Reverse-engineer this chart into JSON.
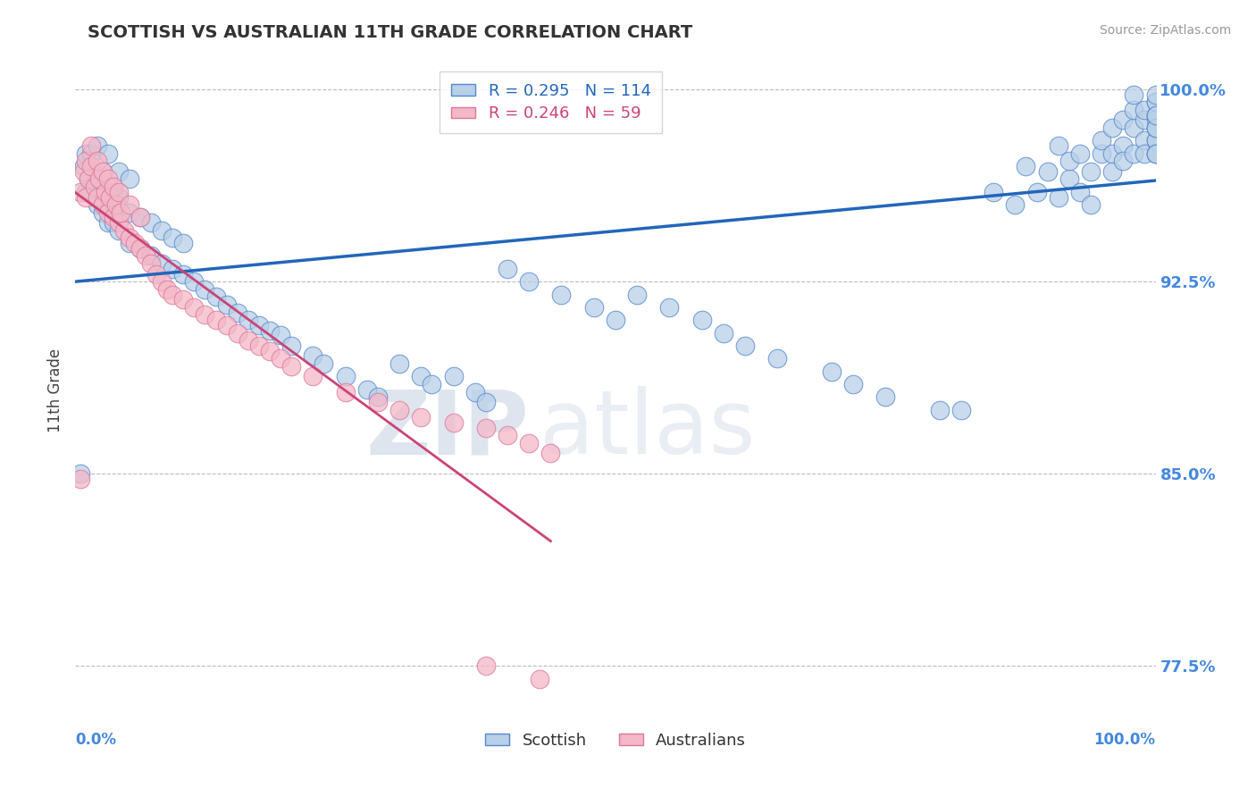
{
  "title": "SCOTTISH VS AUSTRALIAN 11TH GRADE CORRELATION CHART",
  "source": "Source: ZipAtlas.com",
  "ylabel": "11th Grade",
  "legend_label1": "Scottish",
  "legend_label2": "Australians",
  "R_blue": 0.295,
  "N_blue": 114,
  "R_pink": 0.246,
  "N_pink": 59,
  "blue_color": "#b8d0e8",
  "blue_edge_color": "#5588cc",
  "blue_line_color": "#2266bb",
  "pink_color": "#f4b8c8",
  "pink_edge_color": "#dd7799",
  "pink_line_color": "#cc4477",
  "axis_label_color": "#4488dd",
  "title_color": "#333333",
  "grid_color": "#bbbbbb",
  "background_color": "#ffffff",
  "watermark_zip": "ZIP",
  "watermark_atlas": "atlas",
  "xmin": 0.0,
  "xmax": 1.0,
  "ymin": 0.755,
  "ymax": 1.01,
  "yticks": [
    0.775,
    0.85,
    0.925,
    1.0
  ],
  "ytick_labels": [
    "77.5%",
    "85.0%",
    "92.5%",
    "100.0%"
  ],
  "blue_x": [
    0.005,
    0.008,
    0.01,
    0.01,
    0.012,
    0.015,
    0.015,
    0.02,
    0.02,
    0.02,
    0.025,
    0.025,
    0.03,
    0.03,
    0.03,
    0.035,
    0.035,
    0.04,
    0.04,
    0.04,
    0.05,
    0.05,
    0.05,
    0.06,
    0.06,
    0.07,
    0.07,
    0.08,
    0.08,
    0.09,
    0.09,
    0.1,
    0.1,
    0.11,
    0.12,
    0.13,
    0.14,
    0.15,
    0.16,
    0.17,
    0.18,
    0.19,
    0.2,
    0.22,
    0.23,
    0.25,
    0.27,
    0.28,
    0.3,
    0.32,
    0.33,
    0.35,
    0.37,
    0.38,
    0.4,
    0.42,
    0.45,
    0.48,
    0.5,
    0.52,
    0.55,
    0.58,
    0.6,
    0.62,
    0.65,
    0.7,
    0.72,
    0.75,
    0.8,
    0.82,
    0.85,
    0.87,
    0.88,
    0.89,
    0.9,
    0.91,
    0.91,
    0.92,
    0.92,
    0.93,
    0.93,
    0.94,
    0.94,
    0.95,
    0.95,
    0.96,
    0.96,
    0.96,
    0.97,
    0.97,
    0.97,
    0.98,
    0.98,
    0.98,
    0.98,
    0.99,
    0.99,
    0.99,
    0.99,
    1.0,
    1.0,
    1.0,
    1.0,
    1.0,
    1.0,
    1.0,
    1.0,
    1.0,
    1.0,
    1.0,
    1.0,
    1.0,
    1.0,
    1.0
  ],
  "blue_y": [
    0.85,
    0.97,
    0.96,
    0.975,
    0.965,
    0.96,
    0.975,
    0.955,
    0.965,
    0.978,
    0.952,
    0.968,
    0.948,
    0.962,
    0.975,
    0.948,
    0.96,
    0.945,
    0.958,
    0.968,
    0.94,
    0.952,
    0.965,
    0.938,
    0.95,
    0.935,
    0.948,
    0.932,
    0.945,
    0.93,
    0.942,
    0.928,
    0.94,
    0.925,
    0.922,
    0.919,
    0.916,
    0.913,
    0.91,
    0.908,
    0.906,
    0.904,
    0.9,
    0.896,
    0.893,
    0.888,
    0.883,
    0.88,
    0.893,
    0.888,
    0.885,
    0.888,
    0.882,
    0.878,
    0.93,
    0.925,
    0.92,
    0.915,
    0.91,
    0.92,
    0.915,
    0.91,
    0.905,
    0.9,
    0.895,
    0.89,
    0.885,
    0.88,
    0.875,
    0.875,
    0.96,
    0.955,
    0.97,
    0.96,
    0.968,
    0.958,
    0.978,
    0.965,
    0.972,
    0.96,
    0.975,
    0.955,
    0.968,
    0.975,
    0.98,
    0.975,
    0.985,
    0.968,
    0.978,
    0.972,
    0.988,
    0.975,
    0.985,
    0.992,
    0.998,
    0.98,
    0.988,
    0.975,
    0.992,
    0.975,
    0.98,
    0.985,
    0.99,
    0.995,
    0.988,
    0.98,
    0.975,
    0.985,
    0.99,
    0.995,
    0.975,
    0.985,
    0.99,
    0.998
  ],
  "pink_x": [
    0.005,
    0.008,
    0.01,
    0.01,
    0.012,
    0.015,
    0.015,
    0.018,
    0.02,
    0.02,
    0.022,
    0.025,
    0.025,
    0.028,
    0.03,
    0.03,
    0.032,
    0.035,
    0.035,
    0.038,
    0.04,
    0.04,
    0.042,
    0.045,
    0.05,
    0.05,
    0.055,
    0.06,
    0.06,
    0.065,
    0.07,
    0.075,
    0.08,
    0.085,
    0.09,
    0.1,
    0.11,
    0.12,
    0.13,
    0.14,
    0.15,
    0.16,
    0.17,
    0.18,
    0.19,
    0.2,
    0.22,
    0.25,
    0.28,
    0.3,
    0.32,
    0.35,
    0.38,
    0.4,
    0.005,
    0.42,
    0.44,
    0.38,
    0.43
  ],
  "pink_y": [
    0.96,
    0.968,
    0.958,
    0.972,
    0.965,
    0.97,
    0.978,
    0.962,
    0.958,
    0.972,
    0.965,
    0.955,
    0.968,
    0.96,
    0.952,
    0.965,
    0.958,
    0.95,
    0.962,
    0.955,
    0.948,
    0.96,
    0.952,
    0.945,
    0.942,
    0.955,
    0.94,
    0.938,
    0.95,
    0.935,
    0.932,
    0.928,
    0.925,
    0.922,
    0.92,
    0.918,
    0.915,
    0.912,
    0.91,
    0.908,
    0.905,
    0.902,
    0.9,
    0.898,
    0.895,
    0.892,
    0.888,
    0.882,
    0.878,
    0.875,
    0.872,
    0.87,
    0.868,
    0.865,
    0.848,
    0.862,
    0.858,
    0.775,
    0.77
  ]
}
